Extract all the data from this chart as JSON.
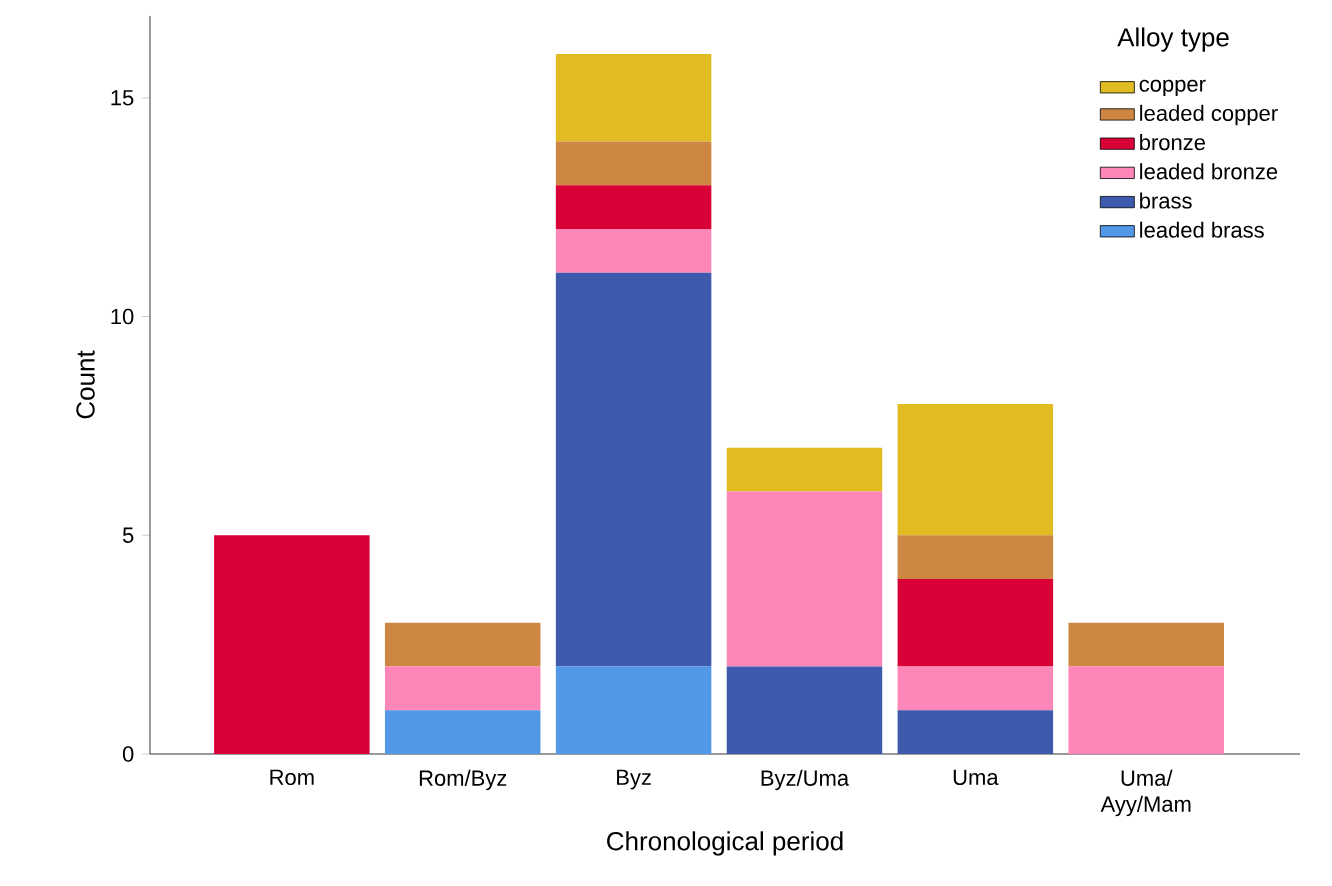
{
  "chart_data": {
    "type": "bar",
    "stacked": true,
    "xlabel": "Chronological period",
    "ylabel": "Count",
    "legend_title": "Alloy type",
    "legend": "top right",
    "categories": [
      "Rom",
      "Rom/Byz",
      "Byz",
      "Byz/Uma",
      "Uma",
      "Uma/ Ayy/Mam"
    ],
    "ylim": [
      0,
      16.87
    ],
    "yticks": [
      0,
      5,
      10,
      15
    ],
    "series": [
      {
        "name": "leaded brass",
        "color": "#5198e6",
        "values": [
          0,
          1,
          2,
          0,
          0,
          0
        ]
      },
      {
        "name": "brass",
        "color": "#3e5aad",
        "values": [
          0,
          0,
          9,
          2,
          1,
          0
        ]
      },
      {
        "name": "leaded bronze",
        "color": "#ff86b9",
        "values": [
          0,
          1,
          1,
          4,
          1,
          2
        ]
      },
      {
        "name": "bronze",
        "color": "#d80036",
        "values": [
          5,
          0,
          1,
          0,
          2,
          0
        ]
      },
      {
        "name": "leaded copper",
        "color": "#cd8743",
        "values": [
          0,
          1,
          1,
          0,
          1,
          1
        ]
      },
      {
        "name": "copper",
        "color": "#e0bb22",
        "values": [
          0,
          0,
          2,
          1,
          3,
          0
        ]
      }
    ]
  }
}
